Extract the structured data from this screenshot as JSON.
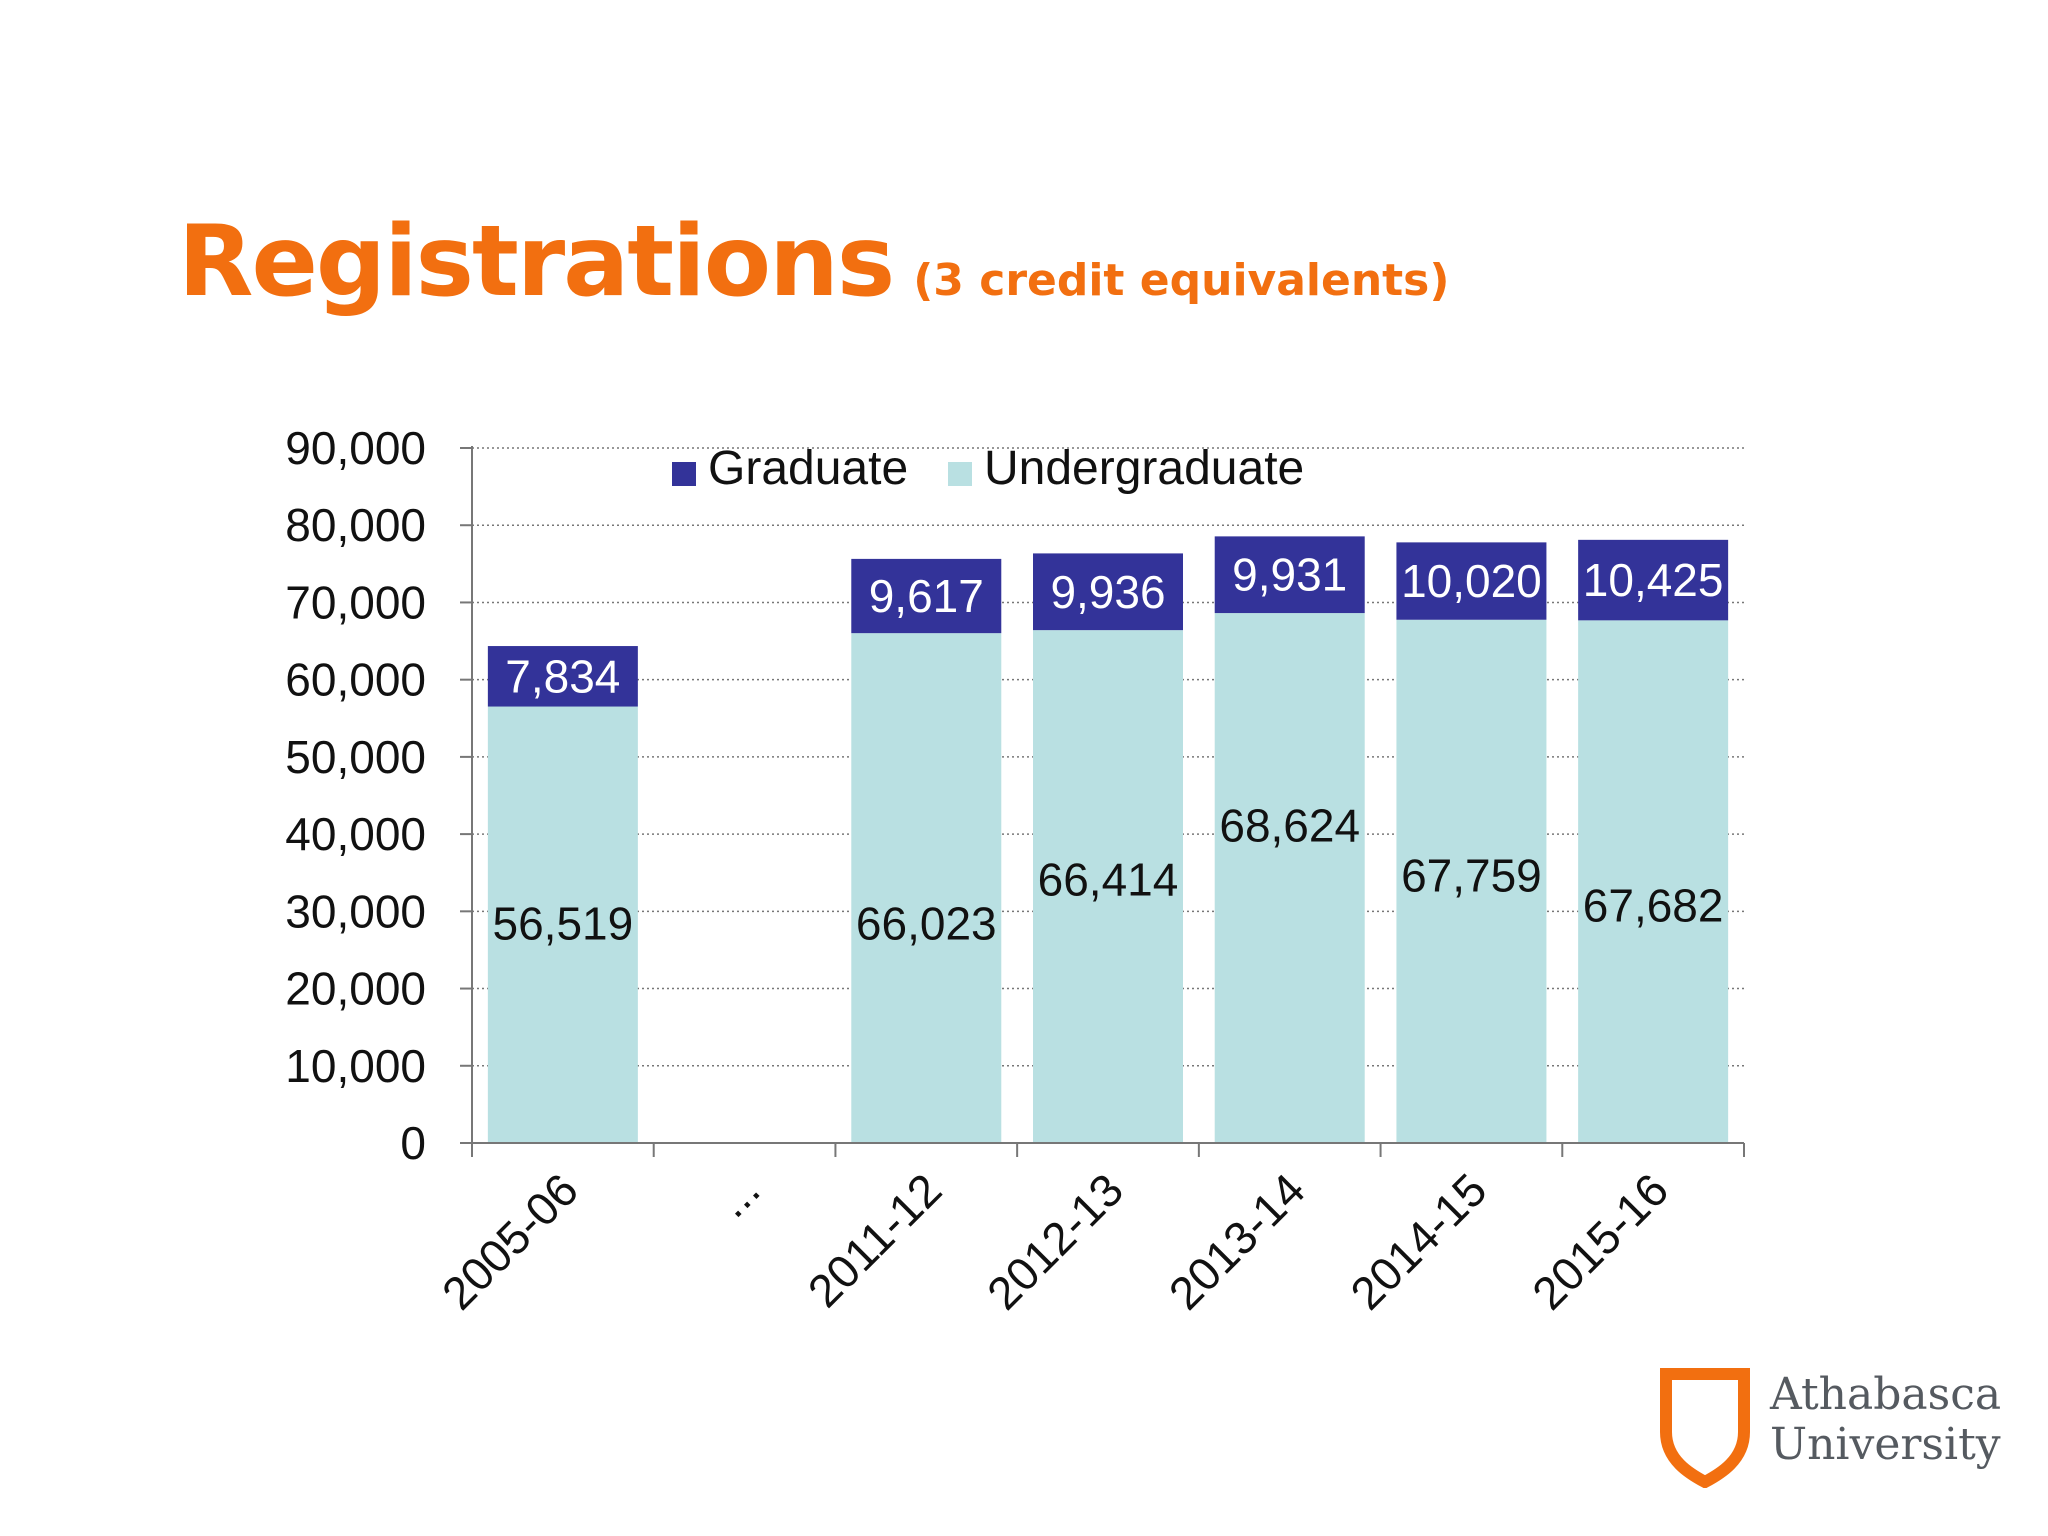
{
  "slide": {
    "title": "Registrations",
    "subtitle": "(3 credit equivalents)"
  },
  "logo": {
    "line1": "Athabasca",
    "line2": "University"
  },
  "colors": {
    "title": "#f26f10",
    "graduate": "#333399",
    "undergraduate": "#b9e0e2",
    "logo_shield": "#f26f10"
  },
  "chart_data": {
    "type": "bar",
    "stacked": true,
    "categories": [
      "2005-06",
      "...",
      "2011-12",
      "2012-13",
      "2013-14",
      "2014-15",
      "2015-16"
    ],
    "series": [
      {
        "name": "Undergraduate",
        "values": [
          56519,
          null,
          66023,
          66414,
          68624,
          67759,
          67682
        ],
        "labels": [
          "56,519",
          "",
          "66,023",
          "66,414",
          "68,624",
          "67,759",
          "67,682"
        ]
      },
      {
        "name": "Graduate",
        "values": [
          7834,
          null,
          9617,
          9936,
          9931,
          10020,
          10425
        ],
        "labels": [
          "7,834",
          "",
          "9,617",
          "9,936",
          "9,931",
          "10,020",
          "10,425"
        ]
      }
    ],
    "legend_order": [
      "Graduate",
      "Undergraduate"
    ],
    "legend_position": "top",
    "ylim": [
      0,
      90000
    ],
    "ytick_labels": [
      "0",
      "10,000",
      "20,000",
      "30,000",
      "40,000",
      "50,000",
      "60,000",
      "70,000",
      "80,000",
      "90,000"
    ],
    "grid": true
  }
}
